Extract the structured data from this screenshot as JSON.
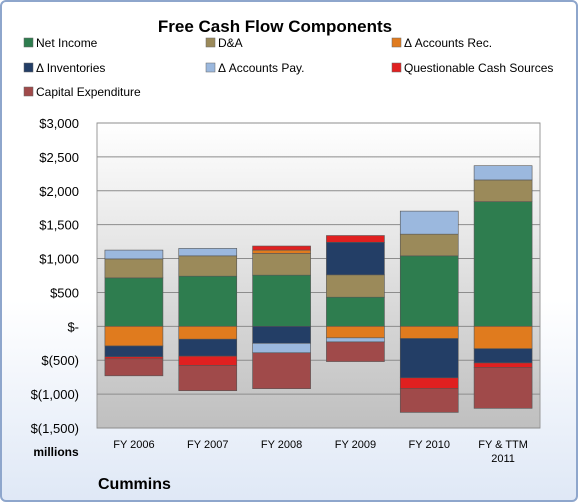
{
  "chart_data": {
    "type": "bar",
    "stacked": true,
    "title": "Free Cash Flow Components",
    "unit_label": "millions",
    "company": "Cummins",
    "categories": [
      "FY 2006",
      "FY 2007",
      "FY 2008",
      "FY 2009",
      "FY 2010",
      "FY & TTM 2011"
    ],
    "ylim": [
      -1500,
      3000
    ],
    "yticks": [
      {
        "value": 3000,
        "label": "$3,000"
      },
      {
        "value": 2500,
        "label": "$2,500"
      },
      {
        "value": 2000,
        "label": "$2,000"
      },
      {
        "value": 1500,
        "label": "$1,500"
      },
      {
        "value": 1000,
        "label": "$1,000"
      },
      {
        "value": 500,
        "label": "$500"
      },
      {
        "value": 0,
        "label": "$-"
      },
      {
        "value": -500,
        "label": "$(500)"
      },
      {
        "value": -1000,
        "label": "$(1,000)"
      },
      {
        "value": -1500,
        "label": "$(1,500)"
      }
    ],
    "grid": true,
    "legend_position": "top",
    "series": [
      {
        "name": "Net Income",
        "color": "#2e7d4f",
        "values": [
          715,
          740,
          755,
          430,
          1040,
          1840
        ]
      },
      {
        "name": "D&A",
        "color": "#9b8a5a",
        "values": [
          280,
          300,
          320,
          330,
          320,
          320
        ]
      },
      {
        "name": "Δ Accounts Rec.",
        "color": "#e07b1e",
        "values": [
          -290,
          -190,
          50,
          -170,
          -180,
          -330
        ]
      },
      {
        "name": "Δ Inventories",
        "color": "#233e66",
        "values": [
          -160,
          -250,
          -250,
          480,
          -580,
          -210
        ]
      },
      {
        "name": "Δ Accounts Pay.",
        "color": "#9bb8de",
        "values": [
          130,
          110,
          -140,
          -60,
          340,
          210
        ]
      },
      {
        "name": "Questionable Cash Sources",
        "color": "#e02020",
        "values": [
          -30,
          -140,
          60,
          100,
          -160,
          -70
        ]
      },
      {
        "name": "Capital Expenditure",
        "color": "#a04a4a",
        "values": [
          -250,
          -370,
          -530,
          -290,
          -350,
          -600
        ]
      }
    ]
  }
}
